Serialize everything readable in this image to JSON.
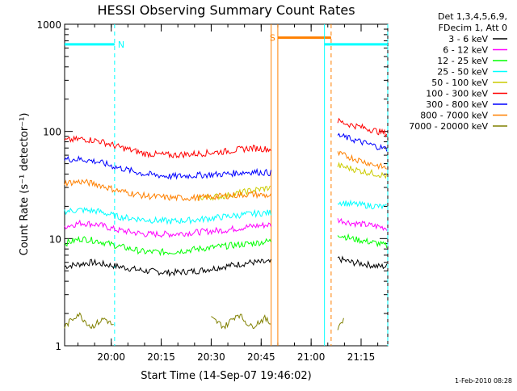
{
  "chart_data": {
    "type": "line",
    "title": "HESSI Observing Summary Count Rates",
    "xlabel": "Start Time (14-Sep-07 19:46:02)",
    "ylabel": "Count Rate (s⁻¹ detector⁻¹)",
    "ylog": true,
    "ylim": [
      1,
      1000
    ],
    "xlim_min": [
      0,
      97
    ],
    "x_ticks": [
      {
        "min": 14,
        "label": "20:00"
      },
      {
        "min": 29,
        "label": "20:15"
      },
      {
        "min": 44,
        "label": "20:30"
      },
      {
        "min": 59,
        "label": "20:45"
      },
      {
        "min": 74,
        "label": "21:00"
      },
      {
        "min": 89,
        "label": "21:15"
      }
    ],
    "y_ticks": [
      {
        "value": 1,
        "label": "1"
      },
      {
        "value": 10,
        "label": "10"
      },
      {
        "value": 100,
        "label": "100"
      },
      {
        "value": 1000,
        "label": "1000"
      }
    ],
    "legend_header": [
      "Det 1,3,4,5,6,9,",
      "FDecim 1, Att 0"
    ],
    "series": [
      {
        "name": "3 - 6 keV",
        "color": "#000000",
        "segments": [
          {
            "x": [
              0,
              8,
              16,
              24,
              32,
              40,
              48,
              56,
              62
            ],
            "y": [
              5.5,
              6.0,
              5.5,
              5.0,
              4.8,
              5.0,
              5.5,
              6.0,
              6.0
            ]
          },
          {
            "x": [
              82,
              86,
              90,
              94,
              97
            ],
            "y": [
              6.5,
              6.0,
              5.8,
              5.5,
              5.5
            ]
          }
        ]
      },
      {
        "name": "6 - 12 keV",
        "color": "#ff00ff",
        "segments": [
          {
            "x": [
              0,
              5,
              10,
              16,
              24,
              32,
              40,
              48,
              56,
              62
            ],
            "y": [
              13,
              14,
              13.5,
              12,
              11,
              11,
              11.5,
              12,
              13,
              13.5
            ]
          },
          {
            "x": [
              82,
              86,
              90,
              94,
              97
            ],
            "y": [
              15,
              14,
              13.5,
              13,
              12.5
            ]
          }
        ]
      },
      {
        "name": "12 - 25 keV",
        "color": "#00ff00",
        "segments": [
          {
            "x": [
              0,
              5,
              10,
              16,
              24,
              32,
              40,
              48,
              56,
              62
            ],
            "y": [
              9,
              10,
              9.5,
              8.5,
              7.5,
              7.5,
              8,
              8.5,
              9,
              9.5
            ]
          },
          {
            "x": [
              82,
              86,
              90,
              94,
              97
            ],
            "y": [
              11,
              10,
              9.5,
              9,
              8.5
            ]
          }
        ]
      },
      {
        "name": "25 - 50 keV",
        "color": "#00ffff",
        "segments": [
          {
            "x": [
              0,
              5,
              10,
              16,
              24,
              32,
              40,
              48,
              56,
              62
            ],
            "y": [
              18,
              18.5,
              18,
              16,
              15,
              14.5,
              15,
              16,
              17,
              17.5
            ]
          },
          {
            "x": [
              82,
              86,
              90,
              94,
              97
            ],
            "y": [
              22,
              21,
              20.5,
              20,
              19.5
            ]
          }
        ]
      },
      {
        "name": "50 - 100 keV",
        "color": "#cccc00",
        "segments": [
          {
            "x": [
              40,
              48,
              56,
              62
            ],
            "y": [
              24,
              25,
              28,
              30
            ]
          },
          {
            "x": [
              82,
              86,
              90,
              94,
              97
            ],
            "y": [
              48,
              45,
              42,
              40,
              38
            ]
          }
        ]
      },
      {
        "name": "100 - 300 keV",
        "color": "#ff0000",
        "segments": [
          {
            "x": [
              0,
              5,
              10,
              16,
              24,
              32,
              40,
              48,
              56,
              62
            ],
            "y": [
              82,
              85,
              82,
              72,
              62,
              60,
              62,
              65,
              70,
              68
            ]
          },
          {
            "x": [
              82,
              86,
              90,
              94,
              97
            ],
            "y": [
              125,
              115,
              108,
              100,
              95
            ]
          }
        ]
      },
      {
        "name": "300 - 800 keV",
        "color": "#0000ff",
        "segments": [
          {
            "x": [
              0,
              5,
              10,
              16,
              24,
              32,
              40,
              48,
              56,
              62
            ],
            "y": [
              55,
              55,
              52,
              46,
              40,
              38,
              39,
              40,
              42,
              41
            ]
          },
          {
            "x": [
              82,
              86,
              90,
              94,
              97
            ],
            "y": [
              92,
              85,
              78,
              72,
              68
            ]
          }
        ]
      },
      {
        "name": "800 - 7000 keV",
        "color": "#ff8000",
        "segments": [
          {
            "x": [
              0,
              5,
              10,
              16,
              24,
              32,
              40,
              48,
              56,
              62
            ],
            "y": [
              33,
              34,
              32,
              28,
              25,
              24,
              24,
              25,
              26,
              25
            ]
          },
          {
            "x": [
              82,
              86,
              90,
              94,
              97
            ],
            "y": [
              62,
              57,
              52,
              48,
              45
            ]
          }
        ]
      },
      {
        "name": "7000 - 20000 keV",
        "color": "#808000",
        "segments": [
          {
            "x": [
              0,
              4,
              8,
              12,
              15
            ],
            "y": [
              1.5,
              2.0,
              1.5,
              1.8,
              1.5
            ]
          },
          {
            "x": [
              44,
              48,
              52,
              56,
              60,
              62
            ],
            "y": [
              1.8,
              1.5,
              2.0,
              1.5,
              1.8,
              1.6
            ]
          },
          {
            "x": [
              82,
              84
            ],
            "y": [
              1.5,
              1.8
            ]
          }
        ]
      }
    ],
    "annotations": [
      {
        "type": "flag-bar",
        "x0": 0,
        "x1": 15,
        "y": 650,
        "color": "#00ffff",
        "label": "N"
      },
      {
        "type": "flag-bar",
        "x0": 64,
        "x1": 80,
        "y": 750,
        "color": "#ff8000",
        "label": "S"
      },
      {
        "type": "flag-bar",
        "x0": 78,
        "x1": 97,
        "y": 650,
        "color": "#00ffff",
        "label": ""
      },
      {
        "type": "vline",
        "x": 15,
        "color": "#00ffff",
        "style": "dashed"
      },
      {
        "type": "vline",
        "x": 62,
        "color": "#ff8000",
        "style": "solid"
      },
      {
        "type": "vline",
        "x": 64,
        "color": "#ff8000",
        "style": "solid"
      },
      {
        "type": "vline",
        "x": 78,
        "color": "#00ffff",
        "style": "solid"
      },
      {
        "type": "vline",
        "x": 80,
        "color": "#ff8000",
        "style": "dashed"
      },
      {
        "type": "vline",
        "x": 97,
        "color": "#00ffff",
        "style": "dashed"
      }
    ]
  },
  "footer": {
    "date": "1-Feb-2010 08:28"
  }
}
